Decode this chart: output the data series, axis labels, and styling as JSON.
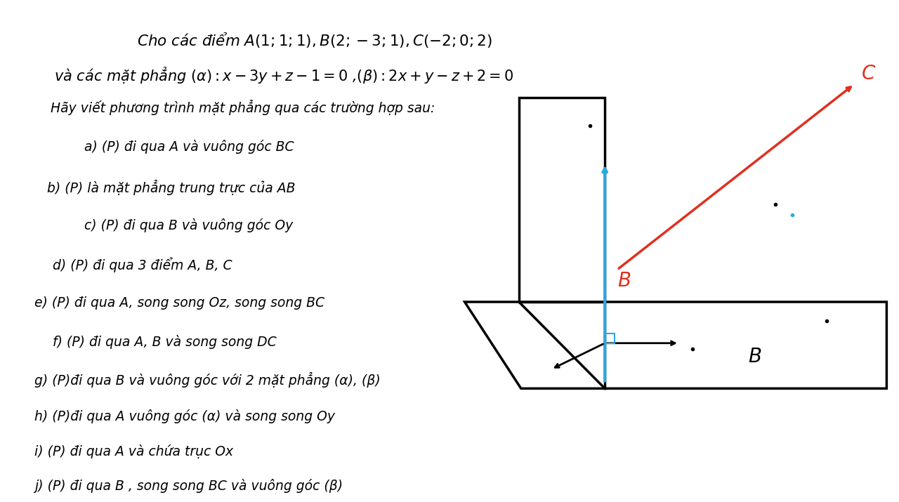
{
  "bg_color": "#ffffff",
  "title_line1": "Cho các điểm $A(1;1;1), B(2;-3;1), C(-2;0;2)$",
  "title_line2": "và các mặt phẳng $(\\alpha): x - 3y + z - 1 = 0$ ,$(\\beta): 2x + y - z + 2 = 0$",
  "subtitle": "Hãy viết phương trình mặt phẳng qua các trường hợp sau:",
  "items": [
    "a\\text{) }(P)\\text{ đi qua }A\\text{ và vuông góc }BC",
    "b\\text{) }(P)\\text{ là mặt phẳng trung trực của }AB",
    "c\\text{) }(P)\\text{ đi qua }B\\text{ và vuông góc }Oy",
    "d\\text{) }(P)\\text{ đi qua 3 điểm }A, B, C",
    "e\\text{) }(P)\\text{ đi qua }A\\text{, song song }Oz\\text{, song song }BC",
    "f\\text{) }(P)\\text{ đi qua }A, B\\text{ và song song }DC",
    "g\\text{) }(P)\\text{đi qua }B\\text{ và vuông góc với 2 mặt phẳng }(\\alpha), (\\beta)",
    "h\\text{) }(P)\\text{đi qua }A\\text{ vuông góc }(\\alpha)\\text{ và song song }Oy",
    "i\\text{) }(P)\\text{ đi qua }A\\text{ và chứa trục }Ox",
    "j\\text{) }(P)\\text{ đi qua }B\\text{ , song song }BC\\text{ và vuông góc }(\\beta)"
  ],
  "text_color": "#000000",
  "blue_color": "#2ca8e0",
  "red_color": "#e03020"
}
